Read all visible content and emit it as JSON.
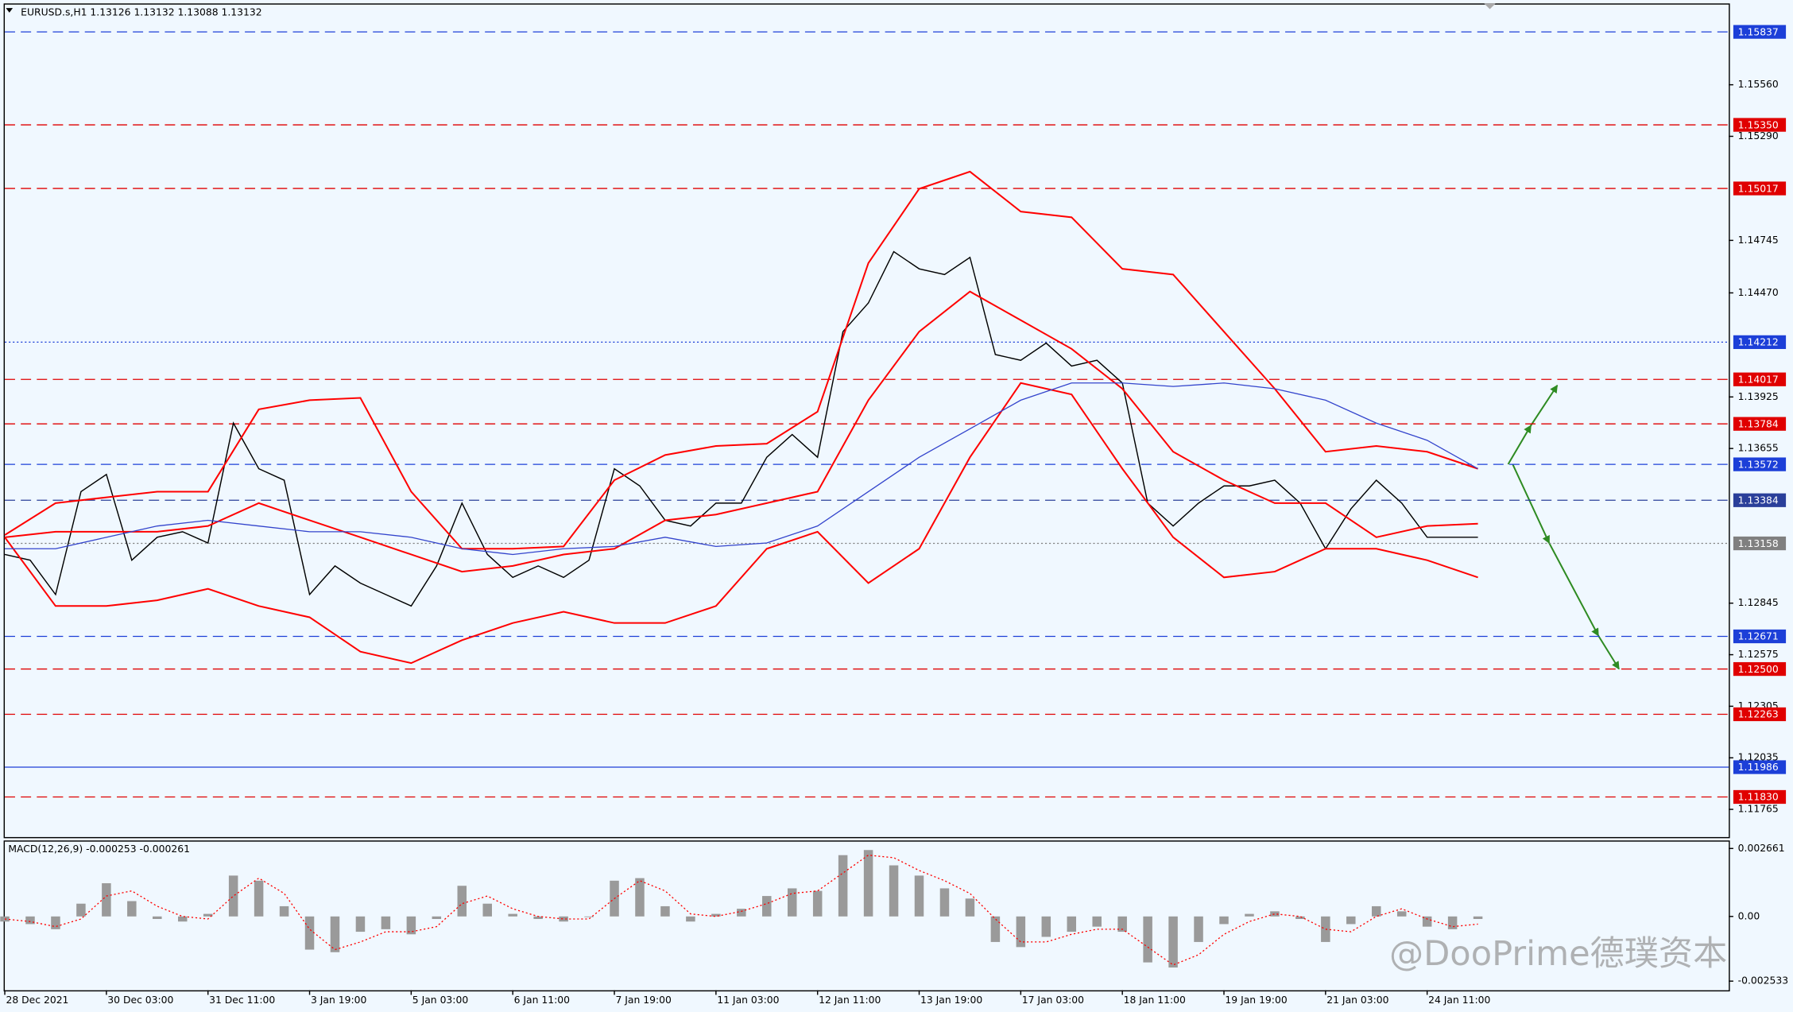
{
  "watermark": "@DooPrime德璞资本",
  "chart_data": [
    {
      "type": "line",
      "title": "EURUSD.s,H1  1.13126 1.13132 1.13088 1.13132",
      "xlim": [
        0,
        543
      ],
      "ylim": [
        1.1162,
        1.1598
      ],
      "yticks": [
        {
          "value": 1.1556,
          "label": "1.15560"
        },
        {
          "value": 1.1529,
          "label": "1.15290"
        },
        1.14745,
        {
          "value": 1.1447,
          "label": "1.14470"
        },
        1.13925,
        1.13655,
        1.12845,
        1.12575,
        1.12305,
        1.12035,
        1.11765
      ],
      "levels": [
        {
          "value": 1.15837,
          "label": "1.15837",
          "color": "#1c3fd8",
          "style": "dashed"
        },
        {
          "value": 1.1535,
          "label": "1.15350",
          "color": "#e00000",
          "style": "dashed"
        },
        {
          "value": 1.15017,
          "label": "1.15017",
          "color": "#e00000",
          "style": "dashed"
        },
        {
          "value": 1.14212,
          "label": "1.14212",
          "color": "#1c3fd8",
          "style": "dotted"
        },
        {
          "value": 1.14017,
          "label": "1.14017",
          "color": "#e00000",
          "style": "dashed"
        },
        {
          "value": 1.13784,
          "label": "1.13784",
          "color": "#e00000",
          "style": "dashed"
        },
        {
          "value": 1.13572,
          "label": "1.13572",
          "color": "#1c3fd8",
          "style": "dashed"
        },
        {
          "value": 1.13384,
          "label": "1.13384",
          "color": "#2a3f9a",
          "style": "dashed"
        },
        {
          "value": 1.13158,
          "label": "1.13158",
          "color": "#808080",
          "style": "dotted"
        },
        {
          "value": 1.12671,
          "label": "1.12671",
          "color": "#1c3fd8",
          "style": "dashed"
        },
        {
          "value": 1.125,
          "label": "1.12500",
          "color": "#e00000",
          "style": "dashed"
        },
        {
          "value": 1.12263,
          "label": "1.12263",
          "color": "#e00000",
          "style": "dashed"
        },
        {
          "value": 1.11986,
          "label": "1.11986",
          "color": "#1c3fd8",
          "style": "solid"
        },
        {
          "value": 1.1183,
          "label": "1.11830",
          "color": "#e00000",
          "style": "dashed"
        }
      ],
      "series": [
        {
          "color": "#000000",
          "width": 1,
          "x": [
            0,
            8,
            16,
            24,
            32,
            40,
            48,
            56,
            64,
            72,
            80,
            88,
            96,
            104,
            112,
            120,
            128,
            136,
            144,
            152,
            160,
            168,
            176,
            184,
            192,
            200,
            208,
            216,
            224,
            232,
            240,
            248,
            256,
            264,
            272,
            280,
            288,
            296,
            304,
            312,
            320,
            328,
            336,
            344,
            352,
            360,
            368,
            376,
            384,
            392,
            400,
            408,
            416,
            424,
            432,
            440,
            448,
            456,
            464
          ],
          "values": [
            1.131,
            1.1307,
            1.1289,
            1.13429,
            1.13519,
            1.1307,
            1.1319,
            1.13219,
            1.1316,
            1.13788,
            1.13549,
            1.13489,
            1.1289,
            1.1304,
            1.1295,
            1.1289,
            1.1283,
            1.1304,
            1.13369,
            1.131,
            1.1298,
            1.1304,
            1.1298,
            1.1307,
            1.13549,
            1.13459,
            1.13279,
            1.13249,
            1.13369,
            1.13369,
            1.13609,
            1.13728,
            1.13609,
            1.14267,
            1.14417,
            1.14686,
            1.14596,
            1.14566,
            1.14656,
            1.14147,
            1.14117,
            1.14207,
            1.14087,
            1.14117,
            1.13998,
            1.13369,
            1.13249,
            1.13369,
            1.13459,
            1.13459,
            1.13489,
            1.13369,
            1.1313,
            1.13339,
            1.13489,
            1.13369,
            1.1319,
            1.1319,
            1.1319
          ]
        },
        {
          "color": "#ff0000",
          "width": 1.4,
          "x": [
            0,
            16,
            32,
            48,
            64,
            80,
            96,
            112,
            128,
            144,
            160,
            176,
            192,
            208,
            224,
            240,
            256,
            272,
            288,
            304,
            320,
            336,
            352,
            368,
            384,
            400,
            416,
            432,
            448,
            464
          ],
          "values": [
            1.13202,
            1.13369,
            1.13399,
            1.13429,
            1.13429,
            1.1386,
            1.13908,
            1.1392,
            1.13429,
            1.1313,
            1.1313,
            1.13142,
            1.13489,
            1.13621,
            1.13668,
            1.1368,
            1.13848,
            1.14626,
            1.15015,
            1.15105,
            1.14896,
            1.14866,
            1.14596,
            1.14566,
            1.14267,
            1.13968,
            1.13638,
            1.13668,
            1.13638,
            1.13549
          ]
        },
        {
          "color": "#ff0000",
          "width": 1.4,
          "x": [
            0,
            16,
            32,
            48,
            64,
            80,
            96,
            112,
            128,
            144,
            160,
            176,
            192,
            208,
            224,
            240,
            256,
            272,
            288,
            304,
            320,
            336,
            352,
            368,
            384,
            400,
            416,
            432,
            448,
            464
          ],
          "values": [
            1.1319,
            1.13219,
            1.13219,
            1.13219,
            1.13249,
            1.13369,
            1.13279,
            1.1319,
            1.131,
            1.1301,
            1.1304,
            1.131,
            1.1313,
            1.13279,
            1.13309,
            1.13369,
            1.13429,
            1.13908,
            1.14267,
            1.14477,
            1.14327,
            1.14177,
            1.13968,
            1.13638,
            1.13489,
            1.13369,
            1.13369,
            1.1319,
            1.13249,
            1.13261
          ]
        },
        {
          "color": "#ff0000",
          "width": 1.4,
          "x": [
            0,
            16,
            32,
            48,
            64,
            80,
            96,
            112,
            128,
            144,
            160,
            176,
            192,
            208,
            224,
            240,
            256,
            272,
            288,
            304,
            320,
            336,
            352,
            368,
            384,
            400,
            416,
            432,
            448,
            464
          ],
          "values": [
            1.1319,
            1.1283,
            1.1283,
            1.1286,
            1.1292,
            1.1283,
            1.12771,
            1.12591,
            1.12531,
            1.12651,
            1.12741,
            1.128,
            1.12741,
            1.12741,
            1.1283,
            1.1313,
            1.13219,
            1.1295,
            1.1313,
            1.13609,
            1.13998,
            1.13938,
            1.13549,
            1.1319,
            1.1298,
            1.1301,
            1.1313,
            1.1313,
            1.1307,
            1.1298
          ]
        },
        {
          "color": "#3344cc",
          "width": 0.9,
          "x": [
            0,
            16,
            32,
            48,
            64,
            80,
            96,
            112,
            128,
            144,
            160,
            176,
            192,
            208,
            224,
            240,
            256,
            272,
            288,
            304,
            320,
            336,
            352,
            368,
            384,
            400,
            416,
            432,
            448,
            464
          ],
          "values": [
            1.1313,
            1.1313,
            1.1319,
            1.13249,
            1.13279,
            1.13249,
            1.13219,
            1.13219,
            1.1319,
            1.1313,
            1.131,
            1.1313,
            1.13142,
            1.1319,
            1.13142,
            1.1316,
            1.13249,
            1.13429,
            1.13609,
            1.13758,
            1.13908,
            1.13998,
            1.13998,
            1.1398,
            1.13998,
            1.13968,
            1.13908,
            1.13788,
            1.13698,
            1.13549
          ]
        }
      ]
    },
    {
      "type": "bar",
      "title": "MACD(12,26,9) -0.000253 -0.000261",
      "xlim": [
        0,
        543
      ],
      "ylim": [
        -0.002533,
        0.002661
      ],
      "yticks": [
        0.002661,
        {
          "value": 0,
          "label": "0.00"
        },
        -0.002533
      ],
      "xticks": [
        {
          "value": 0,
          "label": "28 Dec 2021"
        },
        {
          "value": 32,
          "label": "30 Dec 03:00"
        },
        {
          "value": 64,
          "label": "31 Dec 11:00"
        },
        {
          "value": 96,
          "label": "3 Jan 19:00"
        },
        {
          "value": 128,
          "label": "5 Jan 03:00"
        },
        {
          "value": 160,
          "label": "6 Jan 11:00"
        },
        {
          "value": 192,
          "label": "7 Jan 19:00"
        },
        {
          "value": 224,
          "label": "11 Jan 03:00"
        },
        {
          "value": 256,
          "label": "12 Jan 11:00"
        },
        {
          "value": 288,
          "label": "13 Jan 19:00"
        },
        {
          "value": 320,
          "label": "17 Jan 03:00"
        },
        {
          "value": 352,
          "label": "18 Jan 11:00"
        },
        {
          "value": 384,
          "label": "19 Jan 19:00"
        },
        {
          "value": 416,
          "label": "21 Jan 03:00"
        },
        {
          "value": 448,
          "label": "24 Jan 11:00"
        }
      ],
      "x": [
        0,
        8,
        16,
        24,
        32,
        40,
        48,
        56,
        64,
        72,
        80,
        88,
        96,
        104,
        112,
        120,
        128,
        136,
        144,
        152,
        160,
        168,
        176,
        184,
        192,
        200,
        208,
        216,
        224,
        232,
        240,
        248,
        256,
        264,
        272,
        280,
        288,
        296,
        304,
        312,
        320,
        328,
        336,
        344,
        352,
        360,
        368,
        376,
        384,
        392,
        400,
        408,
        416,
        424,
        432,
        440,
        448,
        456,
        464
      ],
      "series": [
        {
          "style": "histogram",
          "color": "#9a9a9a",
          "values": [
            -0.0002,
            -0.0003,
            -0.0005,
            0.0005,
            0.0013,
            0.0006,
            -0.0001,
            -0.0002,
            0.0001,
            0.0016,
            0.0014,
            0.0004,
            -0.0013,
            -0.0014,
            -0.0006,
            -0.0005,
            -0.0007,
            -0.0001,
            0.0012,
            0.0005,
            0.0001,
            -0.0001,
            -0.0002,
            0,
            0.0014,
            0.0015,
            0.0004,
            -0.0002,
            0.0001,
            0.0003,
            0.0008,
            0.0011,
            0.001,
            0.0024,
            0.0026,
            0.002,
            0.0016,
            0.0011,
            0.0007,
            -0.001,
            -0.0012,
            -0.0008,
            -0.0006,
            -0.0004,
            -0.0006,
            -0.0018,
            -0.002,
            -0.001,
            -0.0003,
            0.0001,
            0.0002,
            -0.0001,
            -0.001,
            -0.0003,
            0.0004,
            0.0002,
            -0.0004,
            -0.0005,
            -0.0001
          ]
        },
        {
          "style": "dotted",
          "color": "#ff0000",
          "values": [
            -0.0001,
            -0.0002,
            -0.0004,
            -0.0001,
            0.0008,
            0.001,
            0.0004,
            0,
            -0.0001,
            0.0008,
            0.0015,
            0.0009,
            -0.0005,
            -0.0013,
            -0.001,
            -0.0006,
            -0.0006,
            -0.0004,
            0.0005,
            0.0008,
            0.0003,
            0,
            -0.0001,
            -0.0001,
            0.0007,
            0.0014,
            0.001,
            0.0001,
            0,
            0.0002,
            0.0005,
            0.0009,
            0.001,
            0.0017,
            0.0024,
            0.0023,
            0.0018,
            0.0014,
            0.0009,
            -0.0001,
            -0.001,
            -0.001,
            -0.0007,
            -0.0005,
            -0.0005,
            -0.0012,
            -0.0019,
            -0.0015,
            -0.0007,
            -0.0002,
            0.0001,
            0,
            -0.0005,
            -0.0006,
            0,
            0.0003,
            -0.0001,
            -0.0004,
            -0.0003
          ]
        }
      ]
    }
  ]
}
